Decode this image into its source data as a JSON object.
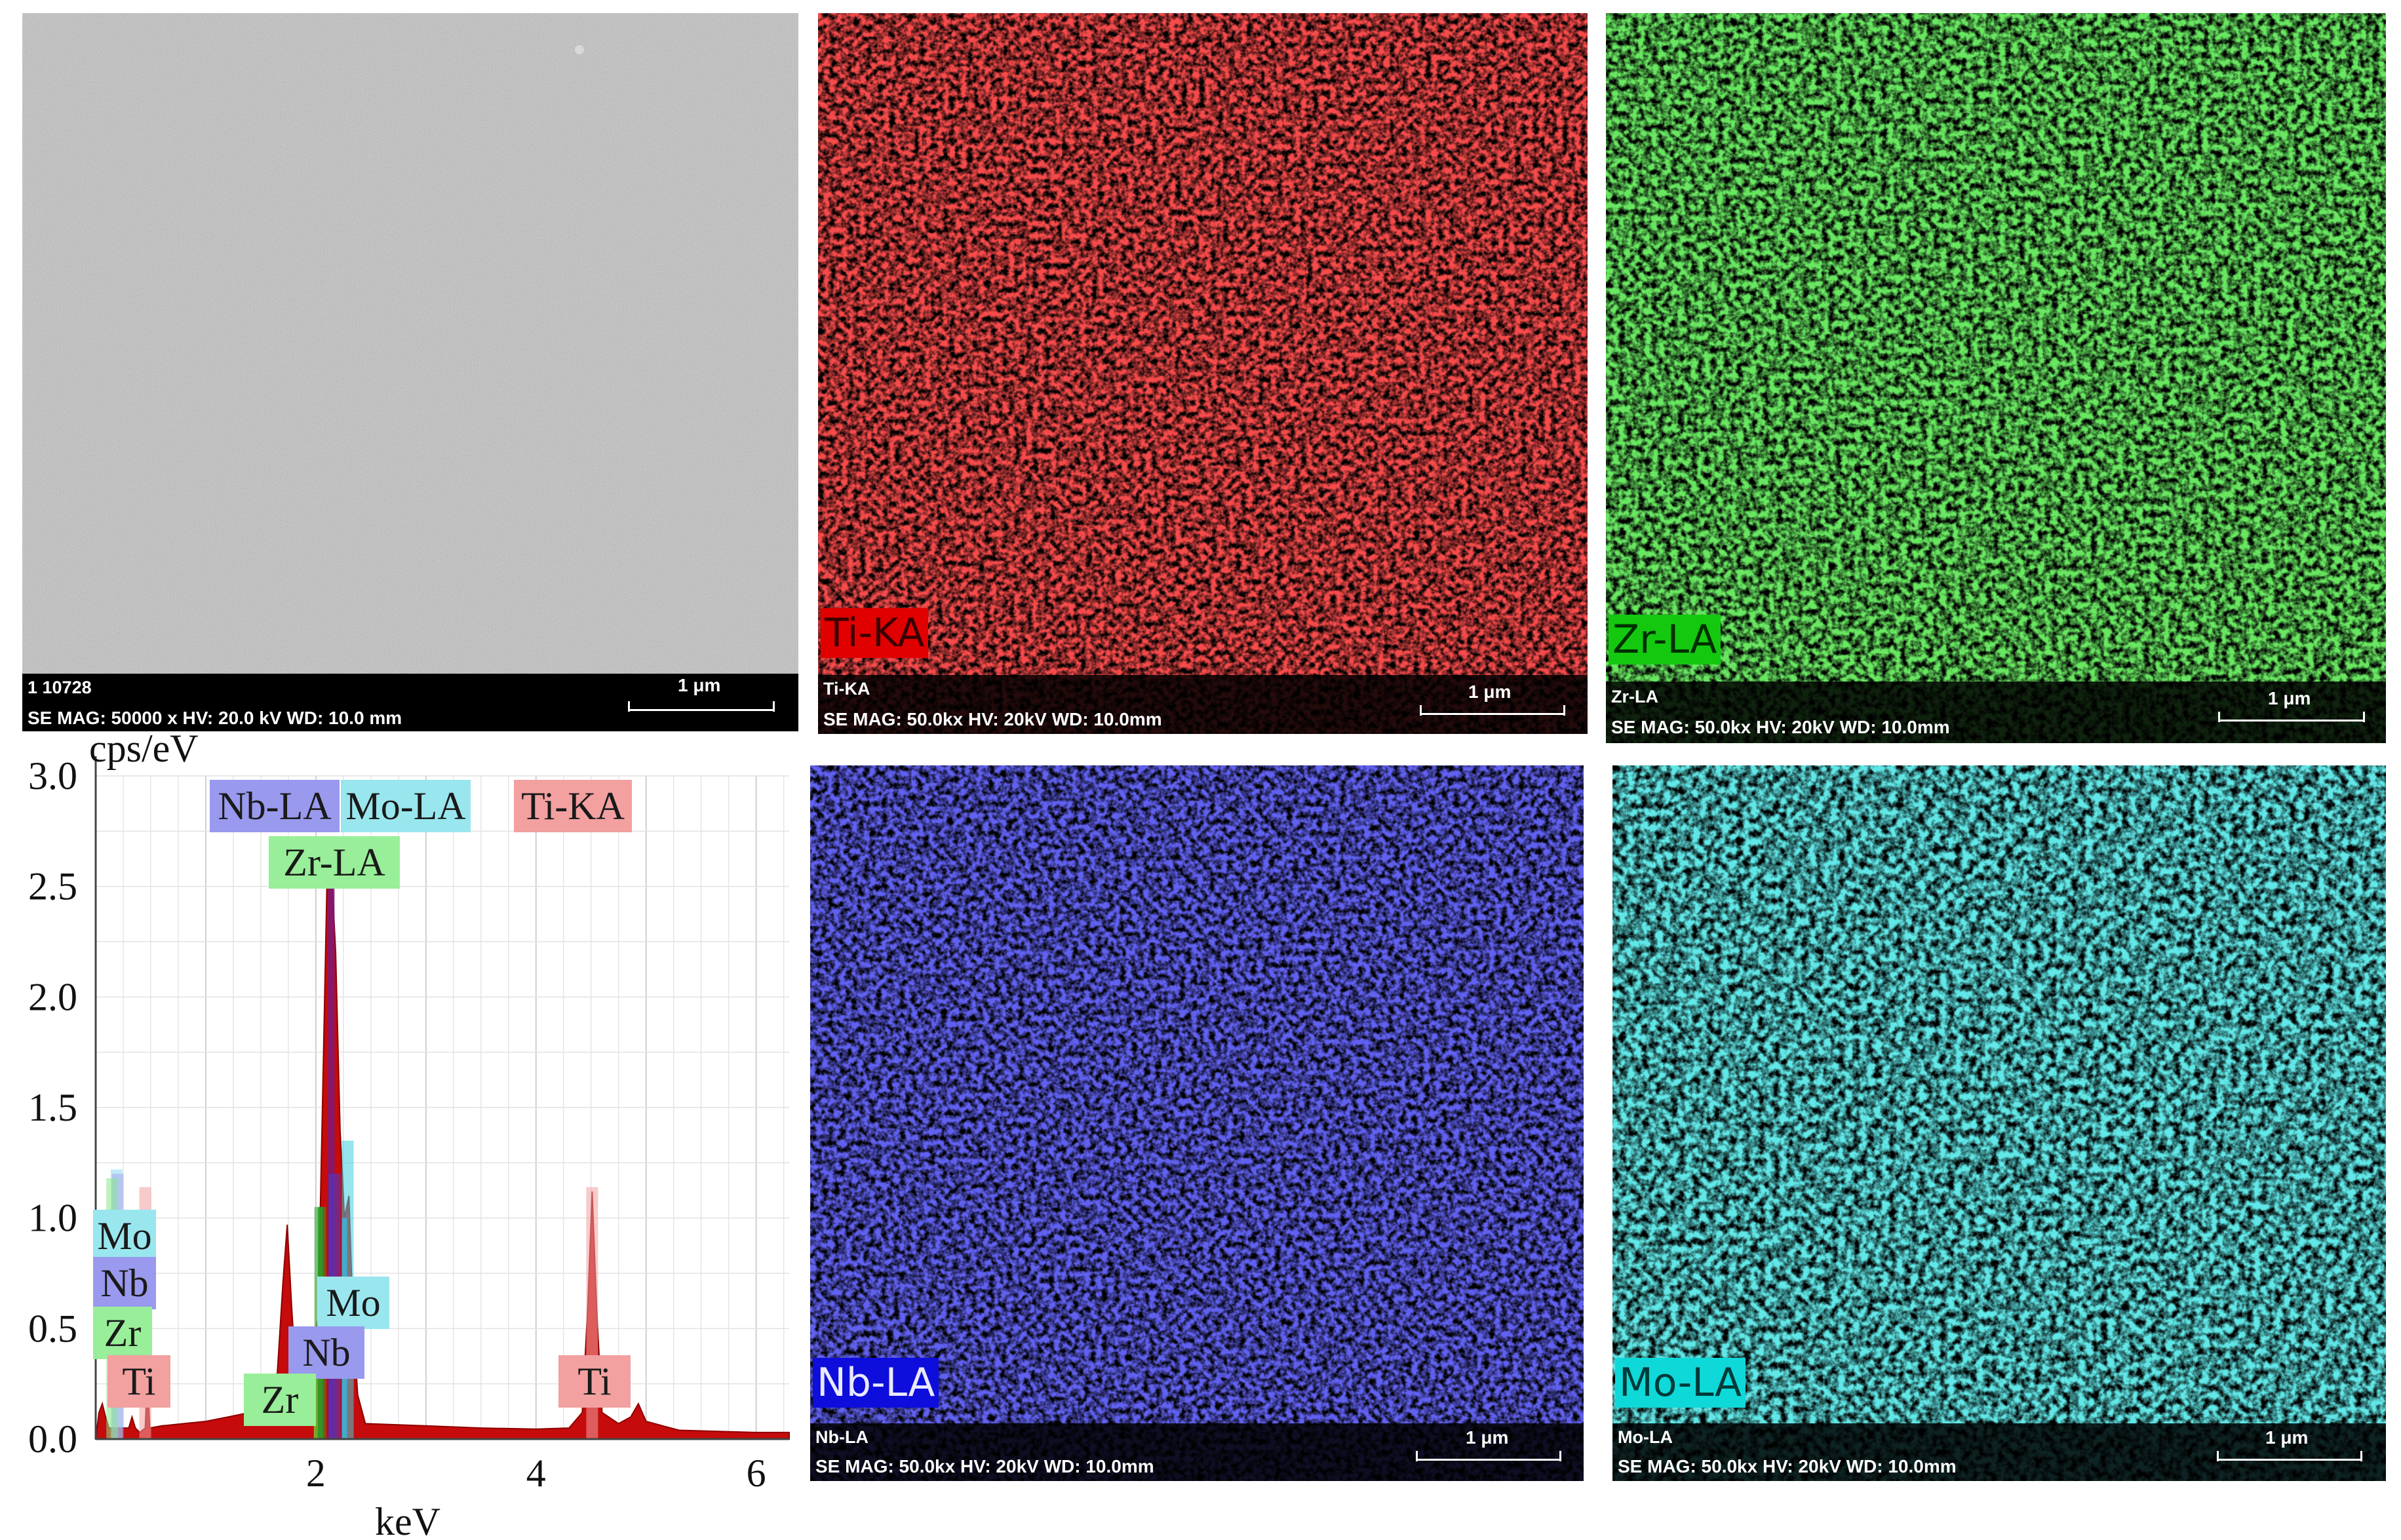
{
  "sem": {
    "id_text": "1 10728",
    "scale": "1 μm",
    "info": "SE  MAG: 50000 x  HV: 20.0 kV  WD: 10.0 mm"
  },
  "maps": [
    {
      "id": "ti",
      "tag": "Ti-KA",
      "small_label": "Ti-KA",
      "scale": "1 μm",
      "info": "SE  MAG: 50.0kx  HV: 20kV  WD: 10.0mm",
      "color": "#e81010",
      "tag_bg": "#e00000"
    },
    {
      "id": "zr",
      "tag": "Zr-LA",
      "small_label": "Zr-LA",
      "scale": "1 μm",
      "info": "SE  MAG: 50.0kx  HV: 20kV  WD: 10.0mm",
      "color": "#21c51d",
      "tag_bg": "#13c80f"
    },
    {
      "id": "nb",
      "tag": "Nb-LA",
      "small_label": "Nb-LA",
      "scale": "1 μm",
      "info": "SE  MAG: 50.0kx  HV: 20kV  WD: 10.0mm",
      "color": "#1717d8",
      "tag_bg": "#0d0ddc"
    },
    {
      "id": "mo",
      "tag": "Mo-LA",
      "small_label": "Mo-LA",
      "scale": "1 μm",
      "info": "SE  MAG: 50.0kx  HV: 20kV  WD: 10.0mm",
      "color": "#1fc6c6",
      "tag_bg": "#0fd8d8"
    }
  ],
  "chart_data": {
    "type": "area",
    "ylabel": "cps/eV",
    "xlabel": "keV",
    "xlim": [
      0,
      6.3
    ],
    "ylim": [
      0,
      3.0
    ],
    "xticks": [
      2,
      4,
      6
    ],
    "yticks": [
      0.0,
      0.5,
      1.0,
      1.5,
      2.0,
      2.5,
      3.0
    ],
    "ytick_labels": [
      "0.0",
      "0.5",
      "1.0",
      "1.5",
      "2.0",
      "2.5",
      "3.0"
    ],
    "spectrum": [
      [
        0.0,
        0.0
      ],
      [
        0.03,
        0.12
      ],
      [
        0.06,
        0.16
      ],
      [
        0.09,
        0.1
      ],
      [
        0.12,
        0.05
      ],
      [
        0.2,
        0.05
      ],
      [
        0.3,
        0.05
      ],
      [
        0.33,
        0.1
      ],
      [
        0.36,
        0.05
      ],
      [
        0.4,
        0.03
      ],
      [
        0.45,
        0.05
      ],
      [
        0.47,
        0.3
      ],
      [
        0.49,
        0.05
      ],
      [
        0.6,
        0.06
      ],
      [
        0.8,
        0.07
      ],
      [
        1.0,
        0.08
      ],
      [
        1.2,
        0.1
      ],
      [
        1.4,
        0.12
      ],
      [
        1.55,
        0.15
      ],
      [
        1.65,
        0.3
      ],
      [
        1.7,
        0.7
      ],
      [
        1.74,
        0.97
      ],
      [
        1.78,
        0.6
      ],
      [
        1.83,
        0.2
      ],
      [
        1.9,
        0.2
      ],
      [
        1.97,
        0.3
      ],
      [
        2.02,
        0.55
      ],
      [
        2.06,
        1.5
      ],
      [
        2.1,
        2.5
      ],
      [
        2.14,
        2.6
      ],
      [
        2.18,
        2.2
      ],
      [
        2.22,
        1.4
      ],
      [
        2.26,
        1.0
      ],
      [
        2.3,
        1.1
      ],
      [
        2.34,
        0.5
      ],
      [
        2.38,
        0.2
      ],
      [
        2.45,
        0.07
      ],
      [
        3.0,
        0.06
      ],
      [
        3.5,
        0.05
      ],
      [
        4.0,
        0.045
      ],
      [
        4.3,
        0.05
      ],
      [
        4.42,
        0.12
      ],
      [
        4.47,
        0.6
      ],
      [
        4.51,
        1.12
      ],
      [
        4.55,
        0.6
      ],
      [
        4.6,
        0.12
      ],
      [
        4.75,
        0.07
      ],
      [
        4.86,
        0.1
      ],
      [
        4.93,
        0.16
      ],
      [
        5.0,
        0.08
      ],
      [
        5.3,
        0.04
      ],
      [
        6.0,
        0.03
      ],
      [
        6.3,
        0.03
      ]
    ],
    "lines": [
      {
        "label": "Mo",
        "energy": 0.19,
        "height": 1.22,
        "color": "#8fd8ee"
      },
      {
        "label": "Nb",
        "energy": 0.2,
        "height": 1.2,
        "color": "#a8a8f0"
      },
      {
        "label": "Zr",
        "energy": 0.15,
        "height": 1.18,
        "color": "#88e888"
      },
      {
        "label": "Ti",
        "energy": 0.45,
        "height": 1.14,
        "color": "#f0a0a0"
      },
      {
        "label": "Zr",
        "energy": 2.04,
        "height": 1.05,
        "color": "#2ca02c"
      },
      {
        "label": "Nb",
        "energy": 2.17,
        "height": 1.2,
        "color": "#4040e0"
      },
      {
        "label": "Mo",
        "energy": 2.29,
        "height": 1.35,
        "color": "#40d0e0"
      },
      {
        "label": "Ti",
        "energy": 4.51,
        "height": 1.14,
        "color": "#f0a0a0"
      }
    ],
    "element_boxes": [
      {
        "text": "Nb-LA",
        "bg": "#9999ee"
      },
      {
        "text": "Mo-LA",
        "bg": "#99e6ee"
      },
      {
        "text": "Zr-LA",
        "bg": "#99ee99"
      },
      {
        "text": "Ti-KA",
        "bg": "#f2a0a0"
      },
      {
        "text": "Mo",
        "bg": "#99e6ee"
      },
      {
        "text": "Nb",
        "bg": "#9999ee"
      },
      {
        "text": "Zr",
        "bg": "#99ee99"
      },
      {
        "text": "Ti",
        "bg": "#f2a0a0"
      },
      {
        "text": "Mo",
        "bg": "#99e6ee"
      },
      {
        "text": "Nb",
        "bg": "#9999ee"
      },
      {
        "text": "Zr",
        "bg": "#99ee99"
      },
      {
        "text": "Ti",
        "bg": "#f2a0a0"
      }
    ],
    "legend": "none",
    "grid": true
  }
}
